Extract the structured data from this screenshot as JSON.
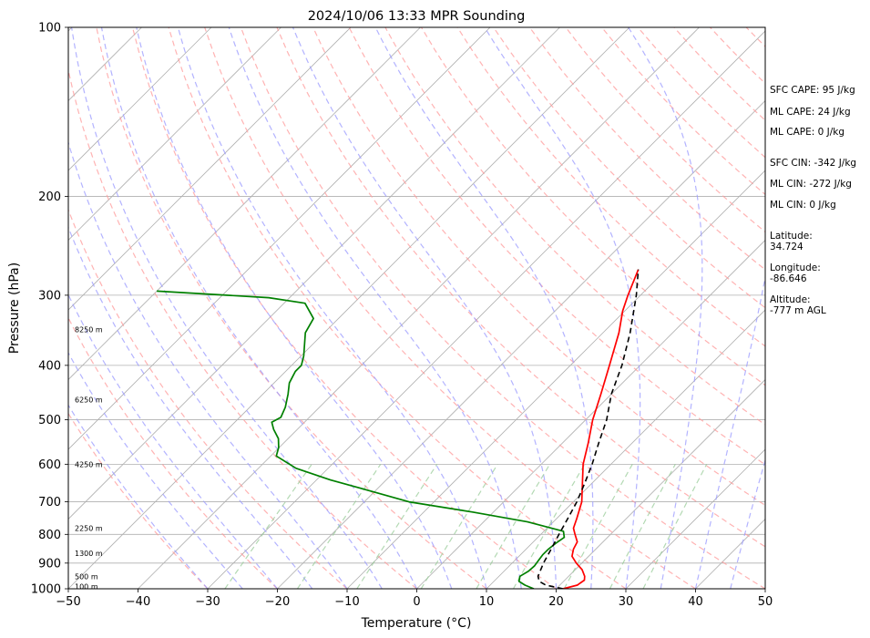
{
  "chart_data": {
    "type": "line",
    "title": "2024/10/06 13:33 MPR Sounding",
    "xlabel": "Temperature (°C)",
    "ylabel": "Pressure (hPa)",
    "xlim": [
      -50,
      50
    ],
    "ylim": [
      1000,
      100
    ],
    "y_scale": "log",
    "grid": true,
    "x_ticks": [
      "−50",
      "−40",
      "−30",
      "−20",
      "−10",
      "0",
      "10",
      "20",
      "30",
      "40",
      "50"
    ],
    "y_ticks": [
      "100",
      "200",
      "300",
      "400",
      "500",
      "600",
      "700",
      "800",
      "900",
      "1000"
    ],
    "height_labels": [
      {
        "p": 345,
        "text": "8250 m"
      },
      {
        "p": 460,
        "text": "6250 m"
      },
      {
        "p": 600,
        "text": "4250 m"
      },
      {
        "p": 780,
        "text": "2250 m"
      },
      {
        "p": 865,
        "text": "1300 m"
      },
      {
        "p": 950,
        "text": "500 m"
      },
      {
        "p": 990,
        "text": "100 m"
      }
    ],
    "series": [
      {
        "key": "temperature",
        "color": "#ff0000",
        "points": [
          [
            1000,
            21
          ],
          [
            985,
            22.5
          ],
          [
            965,
            22.8
          ],
          [
            950,
            22.3
          ],
          [
            925,
            21
          ],
          [
            900,
            19.2
          ],
          [
            875,
            17.6
          ],
          [
            850,
            16.8
          ],
          [
            825,
            16.3
          ],
          [
            800,
            14.9
          ],
          [
            780,
            13.8
          ],
          [
            750,
            12.9
          ],
          [
            700,
            11.2
          ],
          [
            650,
            8.7
          ],
          [
            600,
            6.0
          ],
          [
            550,
            3.7
          ],
          [
            500,
            1.0
          ],
          [
            450,
            -1.5
          ],
          [
            400,
            -4.4
          ],
          [
            350,
            -7.7
          ],
          [
            320,
            -10.3
          ],
          [
            300,
            -11.8
          ],
          [
            270,
            -14.0
          ]
        ]
      },
      {
        "key": "dewpoint",
        "color": "#008000",
        "points": [
          [
            1000,
            16.8
          ],
          [
            985,
            15.0
          ],
          [
            970,
            13.6
          ],
          [
            950,
            13.0
          ],
          [
            930,
            13.5
          ],
          [
            910,
            13.6
          ],
          [
            890,
            13.4
          ],
          [
            870,
            13.2
          ],
          [
            850,
            13.2
          ],
          [
            830,
            13.4
          ],
          [
            810,
            13.8
          ],
          [
            790,
            12.8
          ],
          [
            760,
            6.3
          ],
          [
            730,
            -3.0
          ],
          [
            700,
            -13.6
          ],
          [
            660,
            -23.0
          ],
          [
            640,
            -28.0
          ],
          [
            610,
            -34.6
          ],
          [
            580,
            -39.2
          ],
          [
            560,
            -40.1
          ],
          [
            540,
            -41.4
          ],
          [
            520,
            -43.4
          ],
          [
            505,
            -44.7
          ],
          [
            495,
            -44.1
          ],
          [
            475,
            -44.9
          ],
          [
            450,
            -46.4
          ],
          [
            430,
            -47.8
          ],
          [
            410,
            -48.6
          ],
          [
            400,
            -48.6
          ],
          [
            385,
            -49.6
          ],
          [
            350,
            -52.7
          ],
          [
            330,
            -53.6
          ],
          [
            310,
            -57.0
          ],
          [
            303,
            -63.0
          ],
          [
            295,
            -80.0
          ]
        ]
      },
      {
        "key": "parcel",
        "color": "#000000",
        "points": [
          [
            1000,
            21
          ],
          [
            985,
            18.0
          ],
          [
            970,
            16.5
          ],
          [
            950,
            15.6
          ],
          [
            900,
            14.5
          ],
          [
            850,
            13.6
          ],
          [
            800,
            12.6
          ],
          [
            750,
            11.6
          ],
          [
            700,
            10.5
          ],
          [
            650,
            9.0
          ],
          [
            600,
            7.3
          ],
          [
            550,
            5.2
          ],
          [
            500,
            3.0
          ],
          [
            450,
            0.0
          ],
          [
            400,
            -2.6
          ],
          [
            350,
            -6.1
          ],
          [
            300,
            -10.6
          ],
          [
            270,
            -14.0
          ]
        ]
      }
    ]
  },
  "indices": {
    "sfc_cape": "SFC CAPE: 95 J/kg",
    "ml_cape_1": "ML CAPE: 24 J/kg",
    "ml_cape_2": "ML CAPE: 0 J/kg",
    "sfc_cin": "SFC CIN: -342 J/kg",
    "ml_cin_1": "ML CIN: -272 J/kg",
    "ml_cin_2": "ML CIN: 0 J/kg",
    "latitude": "Latitude:\n34.724",
    "longitude": "Longitude:\n-86.646",
    "altitude": "Altitude:\n-777 m AGL"
  },
  "colors": {
    "isotherm": "#b0b0b0",
    "dry_adiabat": "#ff9999",
    "moist_adiabat": "#9999ff",
    "mixing_ratio": "#99cc99"
  }
}
